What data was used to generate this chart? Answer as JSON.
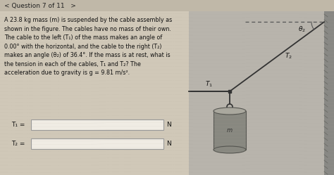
{
  "title": "< Question 7 of 11   >",
  "problem_text_lines": [
    "A 23.8 kg mass (m) is suspended by the cable assembly as",
    "shown in the figure. The cables have no mass of their own.",
    "The cable to the left (T₁) of the mass makes an angle of",
    "0.00° with the horizontal, and the cable to the right (T₂)",
    "makes an angle (θ₂) of 36.4°. If the mass is at rest, what is",
    "the tension in each of the cables, T₁ and T₂? The",
    "acceleration due to gravity is g = 9.81 m/s²."
  ],
  "answer_labels": [
    "T₁ =",
    "T₂ ="
  ],
  "answer_units": [
    "N",
    "N"
  ],
  "overall_bg": "#c8c0b0",
  "title_bg": "#c0b8a8",
  "left_bg": "#d0c8b8",
  "right_bg": "#b8b4ac",
  "box_color": "#f0ece4",
  "border_color": "#999999",
  "text_color": "#111111",
  "title_color": "#222222",
  "wall_color": "#888884",
  "cable_color": "#333333",
  "cyl_face": "#888880",
  "cyl_top": "#aaa89e",
  "cyl_edge": "#555550"
}
